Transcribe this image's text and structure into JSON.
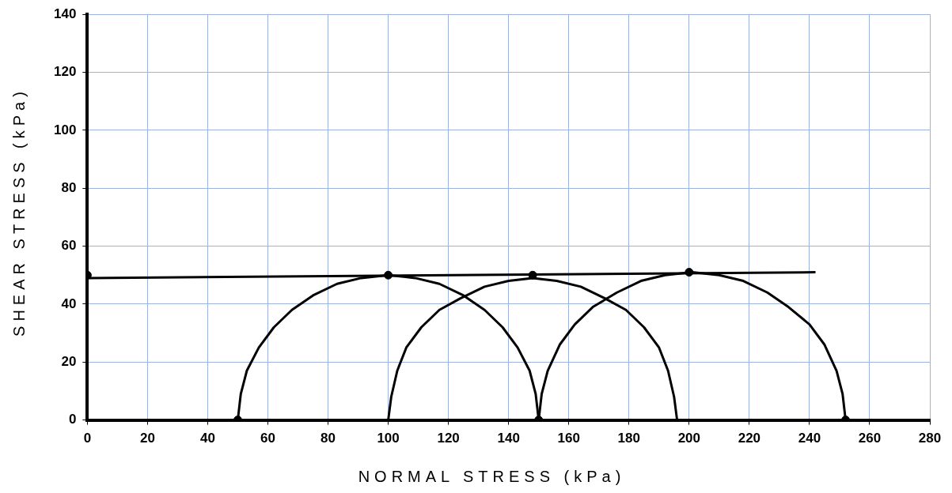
{
  "chart_data": {
    "type": "line",
    "xlabel": "NORMAL STRESS (kPa)",
    "ylabel": "SHEAR STRESS (kPa)",
    "xlim": [
      0,
      280
    ],
    "xticks": [
      0,
      20,
      40,
      60,
      80,
      100,
      120,
      140,
      160,
      180,
      200,
      220,
      240,
      260,
      280
    ],
    "ylim": [
      0,
      140
    ],
    "yticks": [
      0,
      20,
      40,
      60,
      80,
      100,
      120,
      140
    ],
    "grid": true,
    "legend": false,
    "series": [
      {
        "type": "line",
        "color": "#000000",
        "marker": "none",
        "x": [
          50,
          51,
          53,
          57,
          62,
          68,
          75,
          83,
          91,
          100,
          109,
          117,
          125,
          132,
          138,
          143,
          147,
          149,
          150
        ],
        "values": [
          0,
          9,
          17,
          25,
          32,
          38,
          43,
          47,
          49,
          50,
          49,
          47,
          43,
          38,
          32,
          25,
          17,
          9,
          0
        ]
      },
      {
        "type": "line",
        "color": "#000000",
        "marker": "none",
        "x": [
          100,
          101,
          103,
          106,
          111,
          117,
          124,
          132,
          140,
          148,
          156,
          164,
          172,
          179,
          185,
          190,
          193,
          195,
          196
        ],
        "values": [
          0,
          8,
          17,
          25,
          32,
          38,
          42,
          46,
          48,
          49,
          48,
          46,
          42,
          38,
          32,
          25,
          17,
          8,
          0
        ]
      },
      {
        "type": "line",
        "color": "#000000",
        "marker": "none",
        "x": [
          150,
          151,
          153,
          157,
          162,
          168,
          176,
          184,
          192,
          201,
          210,
          218,
          226,
          233,
          240,
          245,
          249,
          251,
          252
        ],
        "values": [
          0,
          9,
          17,
          26,
          33,
          39,
          44,
          48,
          50,
          51,
          50,
          48,
          44,
          39,
          33,
          26,
          17,
          9,
          0
        ]
      },
      {
        "type": "line",
        "color": "#000000",
        "marker": "none",
        "x": [
          0,
          242
        ],
        "values": [
          49,
          51
        ]
      },
      {
        "type": "scatter",
        "color": "#000000",
        "marker": "circle",
        "x": [
          0,
          50,
          100,
          150,
          148,
          200,
          252
        ],
        "values": [
          50,
          0,
          50,
          0,
          50,
          51,
          0
        ]
      }
    ]
  }
}
